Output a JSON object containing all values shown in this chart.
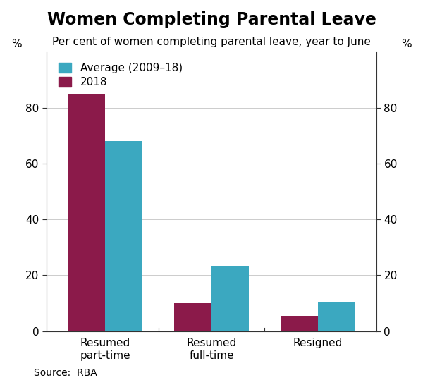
{
  "title": "Women Completing Parental Leave",
  "subtitle": "Per cent of women completing parental leave, year to June",
  "source": "Source:  RBA",
  "categories": [
    "Resumed\npart-time",
    "Resumed\nfull-time",
    "Resigned"
  ],
  "series": {
    "2018": [
      85,
      10,
      5.5
    ],
    "Average (2009–18)": [
      68,
      23.5,
      10.5
    ]
  },
  "colors": {
    "2018": "#8B1A4A",
    "Average (2009–18)": "#3BA8C0"
  },
  "ylim": [
    0,
    100
  ],
  "yticks": [
    0,
    20,
    40,
    60,
    80
  ],
  "ylabel_left": "%",
  "ylabel_right": "%",
  "background_color": "#ffffff",
  "grid_color": "#cccccc",
  "title_fontsize": 17,
  "subtitle_fontsize": 11,
  "tick_fontsize": 11,
  "legend_fontsize": 11,
  "source_fontsize": 10
}
